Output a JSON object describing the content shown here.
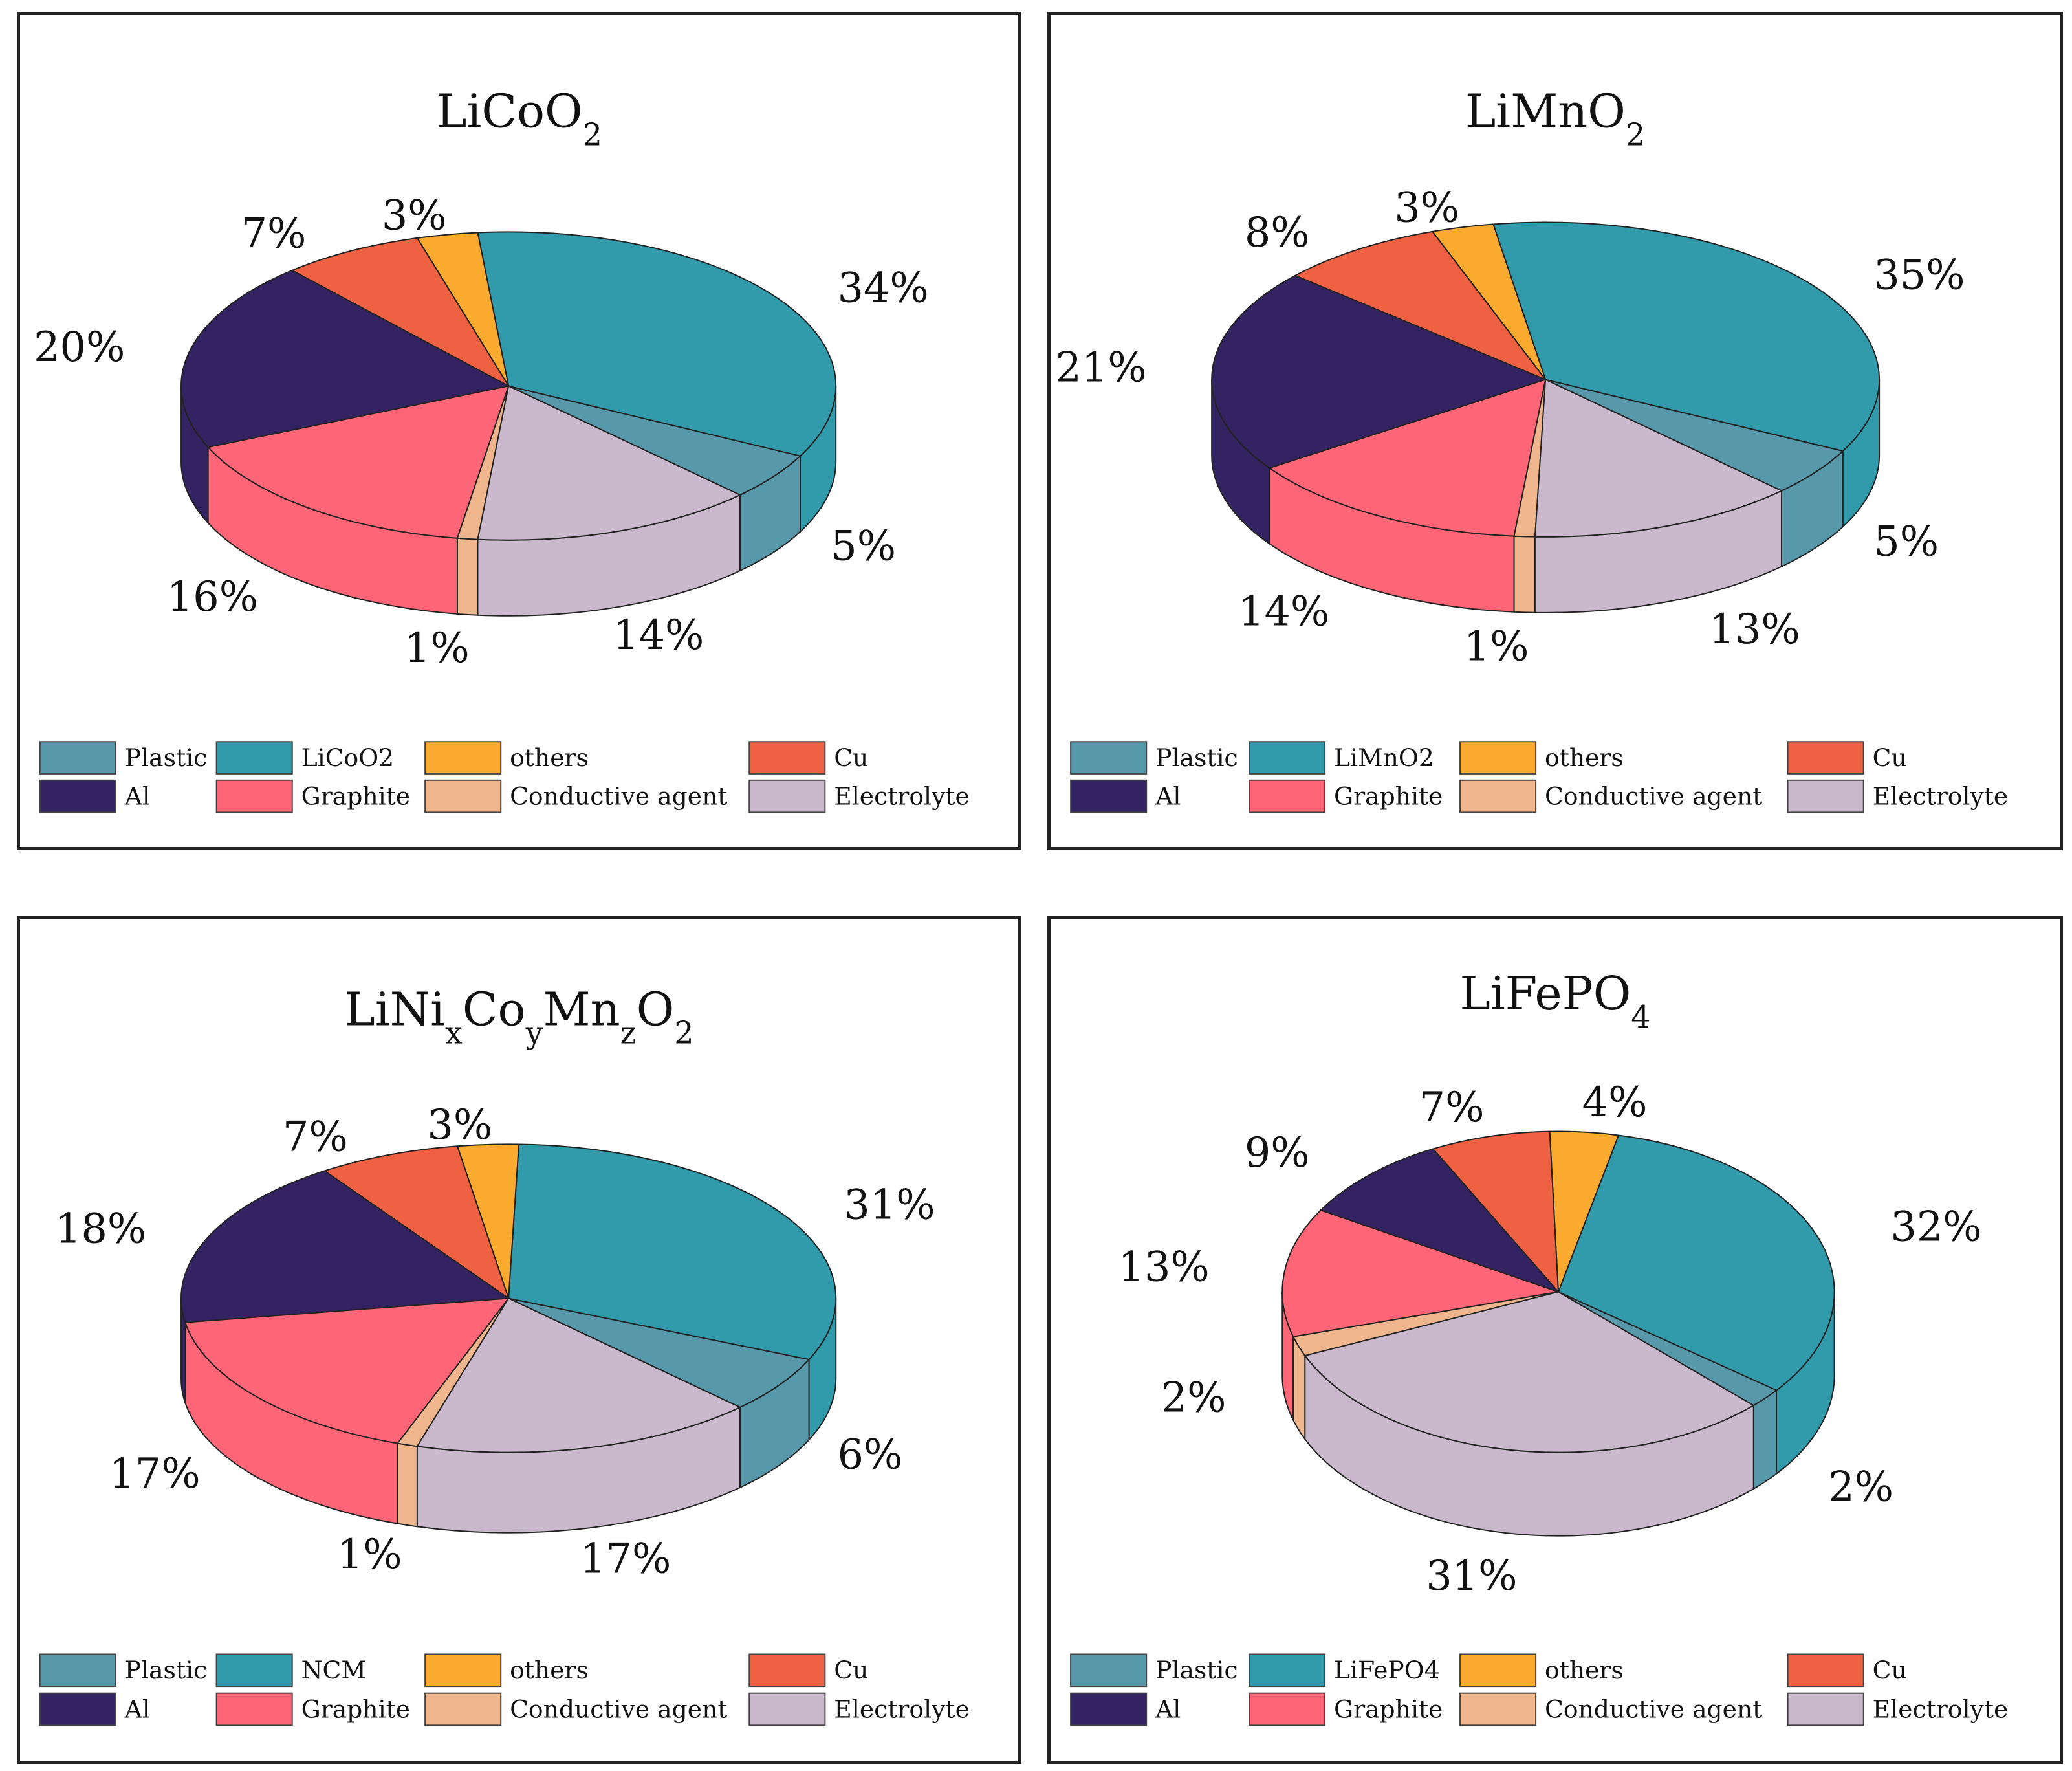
{
  "colors": {
    "Plastic": "#5799ab",
    "Cathode": "#319aab",
    "others": "#fbaa30",
    "Cu": "#ee6142",
    "Al": "#332363",
    "Graphite": "#fe6678",
    "Conductive agent": "#efb68d",
    "Electrolyte": "#cab9cd"
  },
  "chart_data": [
    {
      "type": "pie",
      "style": "3d",
      "title": "LiCoO2",
      "title_parts": [
        {
          "text": "LiCoO",
          "sub": false
        },
        {
          "text": "2",
          "sub": true
        }
      ],
      "legend": [
        "Plastic",
        "LiCoO2",
        "others",
        "Cu",
        "Al",
        "Graphite",
        "Conductive agent",
        "Electrolyte"
      ],
      "slices": [
        {
          "label": "Plastic",
          "value": 5,
          "display": "5%"
        },
        {
          "label": "LiCoO2",
          "value": 34,
          "display": "34%"
        },
        {
          "label": "others",
          "value": 3,
          "display": "3%"
        },
        {
          "label": "Cu",
          "value": 7,
          "display": "7%"
        },
        {
          "label": "Al",
          "value": 20,
          "display": "20%"
        },
        {
          "label": "Graphite",
          "value": 16,
          "display": "16%"
        },
        {
          "label": "Conductive agent",
          "value": 1,
          "display": "1%"
        },
        {
          "label": "Electrolyte",
          "value": 14,
          "display": "14%"
        }
      ]
    },
    {
      "type": "pie",
      "style": "3d",
      "title": "LiMnO2",
      "title_parts": [
        {
          "text": "LiMnO",
          "sub": false
        },
        {
          "text": "2",
          "sub": true
        }
      ],
      "legend": [
        "Plastic",
        "LiMnO2",
        "others",
        "Cu",
        "Al",
        "Graphite",
        "Conductive agent",
        "Electrolyte"
      ],
      "slices": [
        {
          "label": "Plastic",
          "value": 5,
          "display": "5%"
        },
        {
          "label": "LiMnO2",
          "value": 35,
          "display": "35%"
        },
        {
          "label": "others",
          "value": 3,
          "display": "3%"
        },
        {
          "label": "Cu",
          "value": 8,
          "display": "8%"
        },
        {
          "label": "Al",
          "value": 21,
          "display": "21%"
        },
        {
          "label": "Graphite",
          "value": 14,
          "display": "14%"
        },
        {
          "label": "Conductive agent",
          "value": 1,
          "display": "1%"
        },
        {
          "label": "Electrolyte",
          "value": 13,
          "display": "13%"
        }
      ]
    },
    {
      "type": "pie",
      "style": "3d",
      "title": "LiNixCoyMnzO2",
      "title_parts": [
        {
          "text": "LiNi",
          "sub": false
        },
        {
          "text": "x",
          "sub": true
        },
        {
          "text": "Co",
          "sub": false
        },
        {
          "text": "y",
          "sub": true
        },
        {
          "text": "Mn",
          "sub": false
        },
        {
          "text": "z",
          "sub": true
        },
        {
          "text": "O",
          "sub": false
        },
        {
          "text": "2",
          "sub": true
        }
      ],
      "legend": [
        "Plastic",
        "NCM",
        "others",
        "Cu",
        "Al",
        "Graphite",
        "Conductive agent",
        "Electrolyte"
      ],
      "slices": [
        {
          "label": "Plastic",
          "value": 6,
          "display": "6%"
        },
        {
          "label": "NCM",
          "value": 31,
          "display": "31%"
        },
        {
          "label": "others",
          "value": 3,
          "display": "3%"
        },
        {
          "label": "Cu",
          "value": 7,
          "display": "7%"
        },
        {
          "label": "Al",
          "value": 18,
          "display": "18%"
        },
        {
          "label": "Graphite",
          "value": 17,
          "display": "17%"
        },
        {
          "label": "Conductive agent",
          "value": 1,
          "display": "1%"
        },
        {
          "label": "Electrolyte",
          "value": 17,
          "display": "17%"
        }
      ]
    },
    {
      "type": "pie",
      "style": "3d",
      "title": "LiFePO4",
      "title_parts": [
        {
          "text": "LiFePO",
          "sub": false
        },
        {
          "text": "4",
          "sub": true
        }
      ],
      "legend": [
        "Plastic",
        "LiFePO4",
        "others",
        "Cu",
        "Al",
        "Graphite",
        "Conductive agent",
        "Electrolyte"
      ],
      "slices": [
        {
          "label": "Plastic",
          "value": 2,
          "display": "2%"
        },
        {
          "label": "LiFePO4",
          "value": 32,
          "display": "32%"
        },
        {
          "label": "others",
          "value": 4,
          "display": "4%"
        },
        {
          "label": "Cu",
          "value": 7,
          "display": "7%"
        },
        {
          "label": "Al",
          "value": 9,
          "display": "9%"
        },
        {
          "label": "Graphite",
          "value": 13,
          "display": "13%"
        },
        {
          "label": "Conductive agent",
          "value": 2,
          "display": "2%"
        },
        {
          "label": "Electrolyte",
          "value": 31,
          "display": "31%"
        }
      ]
    }
  ]
}
